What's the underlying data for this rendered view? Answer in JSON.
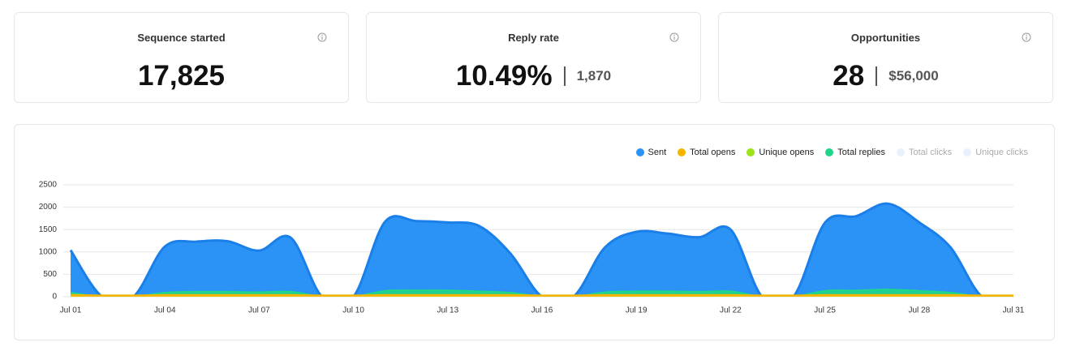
{
  "cards": [
    {
      "title": "Sequence started",
      "value": "17,825"
    },
    {
      "title": "Reply rate",
      "value": "10.49%",
      "secondary": "1,870"
    },
    {
      "title": "Opportunities",
      "value": "28",
      "secondary": "$56,000"
    }
  ],
  "chart_data": {
    "type": "area",
    "categories": [
      "Jul 01",
      null,
      null,
      "Jul 04",
      null,
      null,
      "Jul 07",
      null,
      null,
      "Jul 10",
      null,
      null,
      "Jul 13",
      null,
      null,
      "Jul 16",
      null,
      null,
      "Jul 19",
      null,
      null,
      "Jul 22",
      null,
      null,
      "Jul 25",
      null,
      null,
      "Jul 28",
      null,
      null,
      "Jul 31"
    ],
    "series": [
      {
        "name": "Sent",
        "color": "#2a93f5",
        "values": [
          1040,
          0,
          0,
          1120,
          1230,
          1240,
          1030,
          1320,
          0,
          0,
          1670,
          1690,
          1660,
          1580,
          960,
          0,
          0,
          1100,
          1450,
          1410,
          1330,
          1500,
          0,
          0,
          1650,
          1800,
          2080,
          1660,
          1100,
          0,
          0
        ]
      },
      {
        "name": "Total opens",
        "color": "#f5b400",
        "values": [
          40,
          30,
          30,
          40,
          40,
          40,
          40,
          40,
          30,
          30,
          40,
          40,
          40,
          40,
          40,
          30,
          30,
          40,
          40,
          40,
          40,
          40,
          30,
          30,
          40,
          40,
          40,
          40,
          40,
          30,
          30
        ]
      },
      {
        "name": "Unique opens",
        "color": "#9be31a",
        "values": [
          30,
          20,
          20,
          30,
          30,
          30,
          30,
          30,
          20,
          20,
          30,
          30,
          30,
          30,
          30,
          20,
          20,
          30,
          30,
          30,
          30,
          30,
          20,
          20,
          30,
          30,
          30,
          30,
          30,
          20,
          20
        ]
      },
      {
        "name": "Total replies",
        "color": "#1ed68a",
        "values": [
          90,
          0,
          0,
          90,
          110,
          110,
          100,
          110,
          0,
          0,
          130,
          140,
          140,
          120,
          90,
          0,
          0,
          100,
          120,
          120,
          110,
          120,
          0,
          0,
          130,
          140,
          160,
          130,
          90,
          0,
          0
        ]
      },
      {
        "name": "Total clicks",
        "color": "#e8f1fb",
        "hidden": true,
        "values": [
          null,
          null,
          null,
          null,
          null,
          null,
          null,
          null,
          null,
          null,
          null,
          null,
          null,
          null,
          null,
          null,
          null,
          null,
          null,
          null,
          null,
          null,
          null,
          null,
          null,
          null,
          null,
          null,
          null,
          null,
          null
        ]
      },
      {
        "name": "Unique clicks",
        "color": "#e8f1fb",
        "hidden": true,
        "values": [
          null,
          null,
          null,
          null,
          null,
          null,
          null,
          null,
          null,
          null,
          null,
          null,
          null,
          null,
          null,
          null,
          null,
          null,
          null,
          null,
          null,
          null,
          null,
          null,
          null,
          null,
          null,
          null,
          null,
          null,
          null
        ]
      }
    ],
    "ylim": [
      0,
      2500
    ],
    "yticks": [
      0,
      500,
      1000,
      1500,
      2000,
      2500
    ],
    "grid": true,
    "legend": "top-right"
  }
}
